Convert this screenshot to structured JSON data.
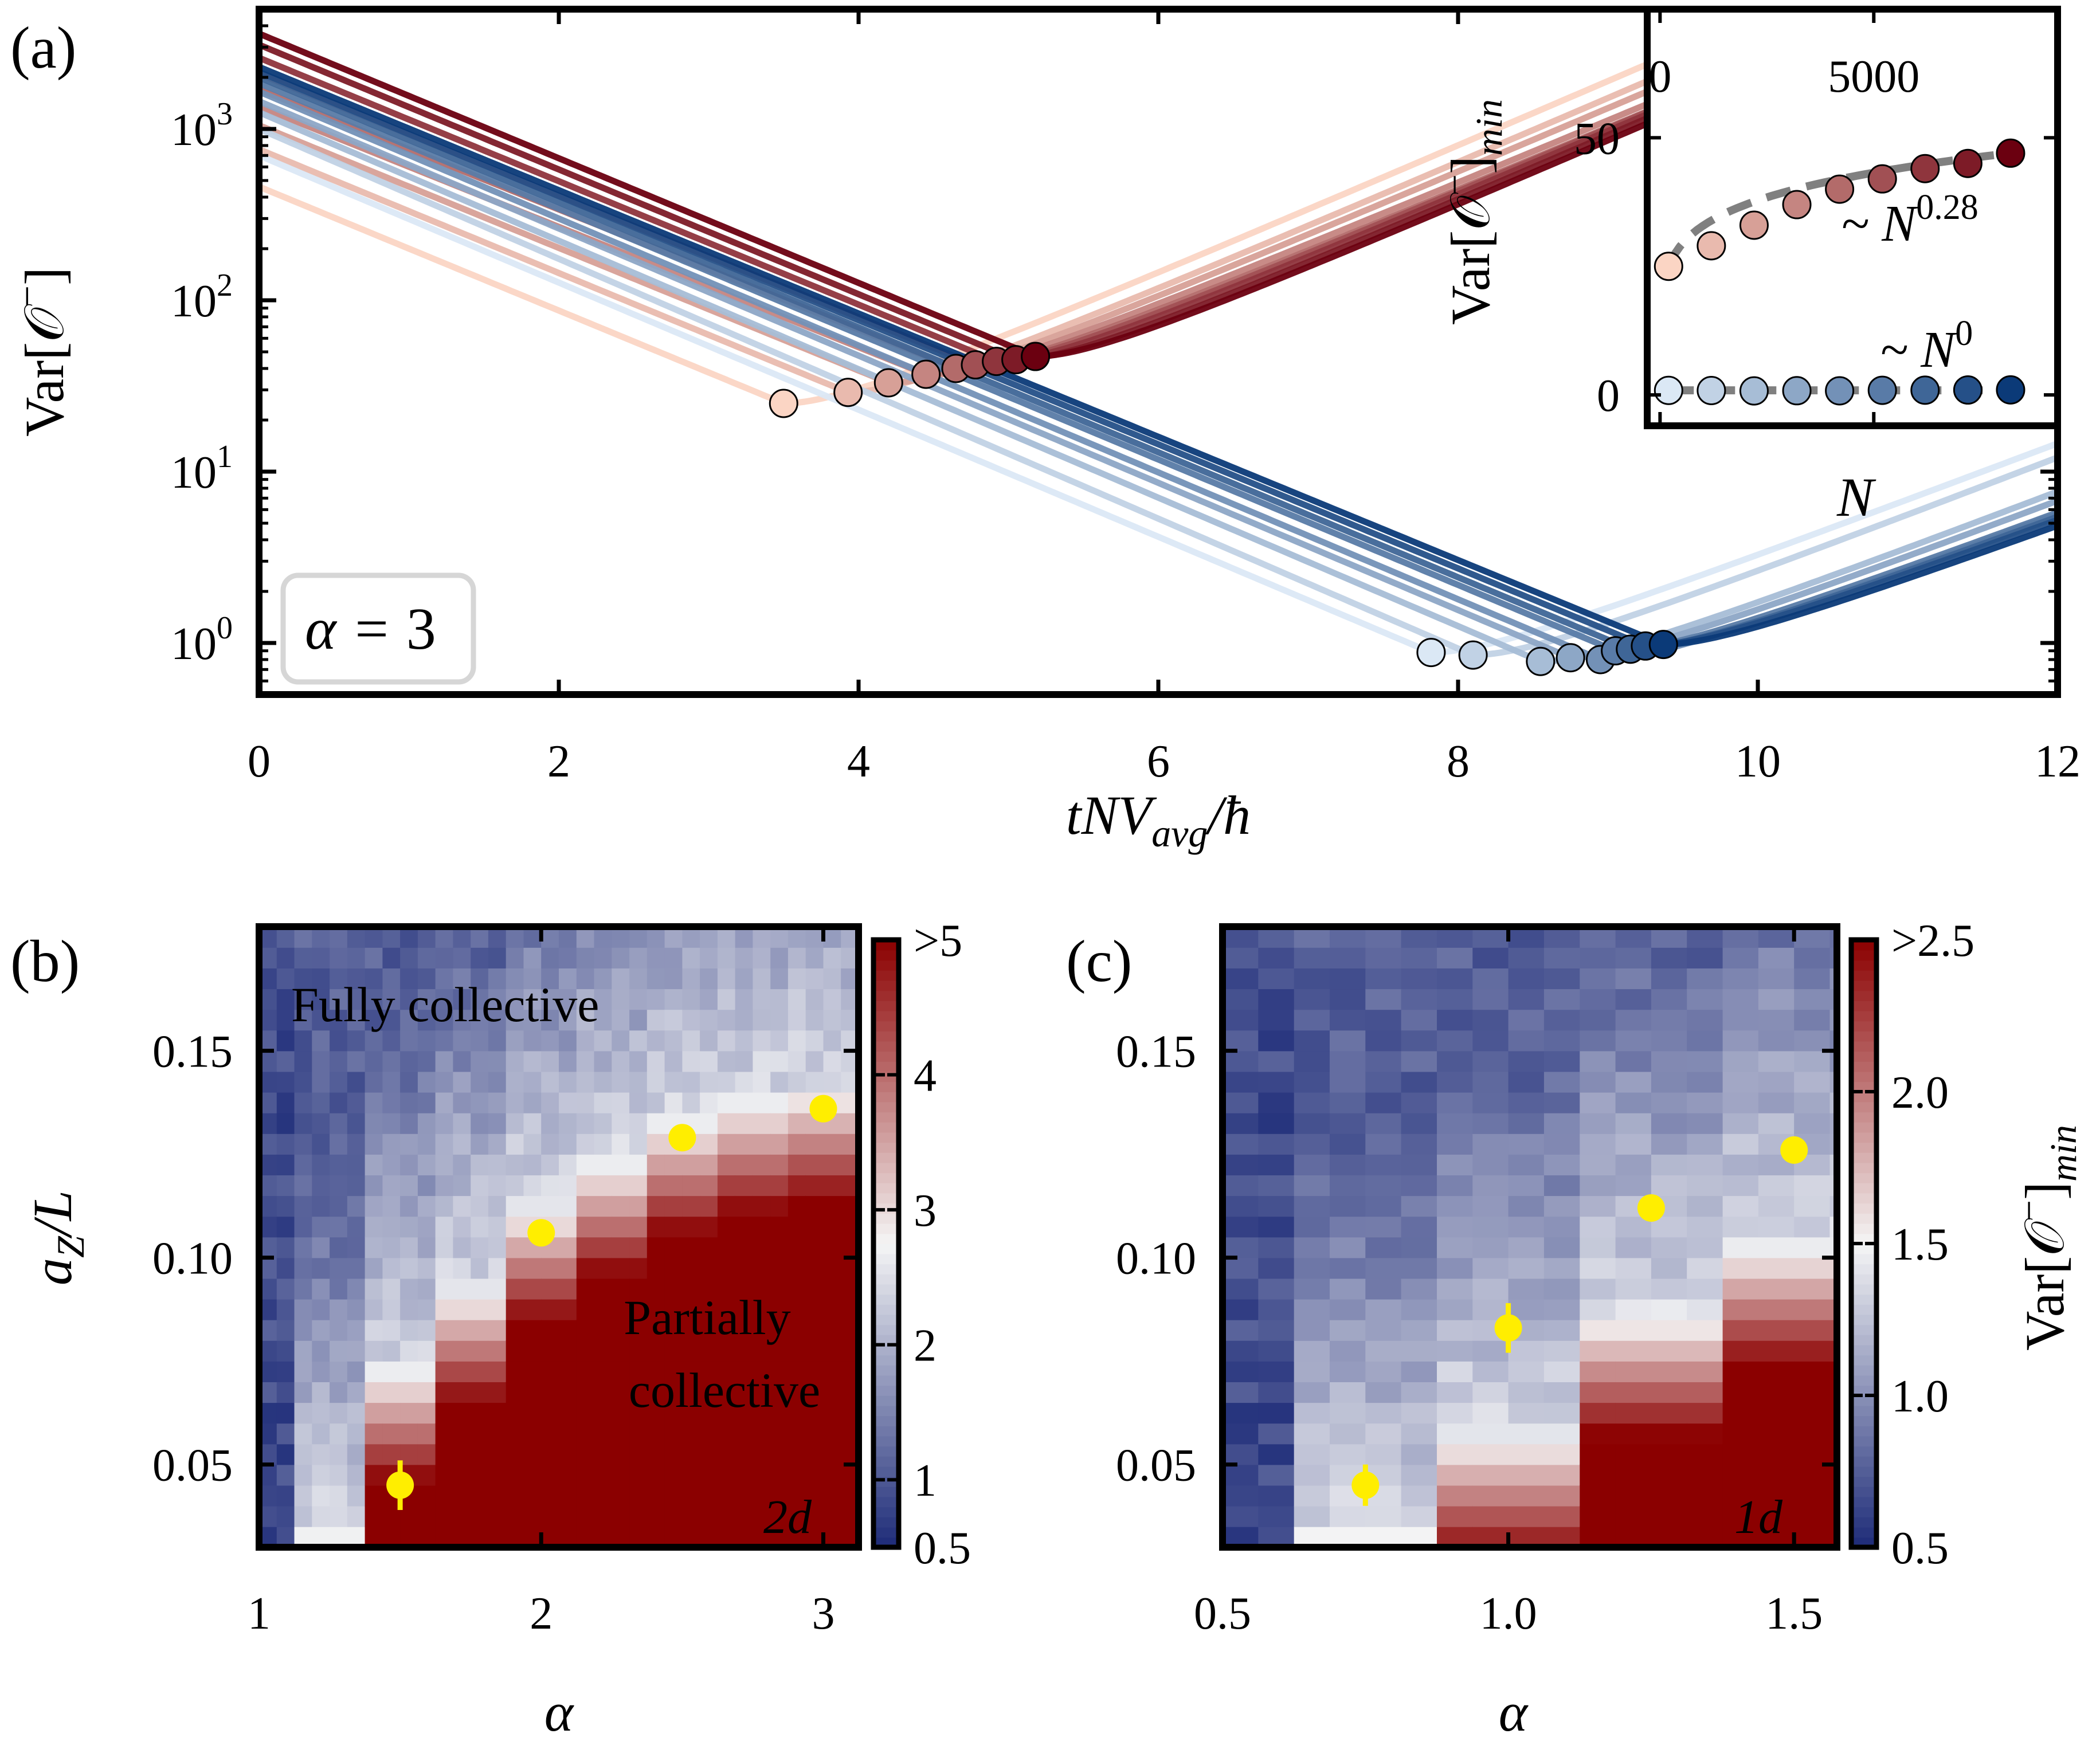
{
  "colors": {
    "red_light": "#fbd5c4",
    "red_dark": "#6b0010",
    "blue_light": "#dbe8f5",
    "blue_dark": "#0b3a78",
    "heat_low": "#1d2b78",
    "heat_mid": "#f5f5f5",
    "heat_high": "#8b0000",
    "marker_yellow": "#ffee00",
    "fit_dash": "#808080",
    "inset_red_text": "#9b0f1e",
    "inset_blue_text": "#1c2a7a"
  },
  "panel_labels": {
    "a": "(a)",
    "b": "(b)",
    "c": "(c)"
  },
  "chart_data": [
    {
      "id": "a",
      "type": "line",
      "xlabel": "tNV",
      "xlabel_sub": "avg",
      "xlabel_tail": "/ħ",
      "ylabel": "Var[𝒪",
      "ylabel_sup": "−",
      "ylabel_tail": "]",
      "xlim": [
        0,
        12
      ],
      "ylim": [
        0.5,
        5000
      ],
      "yscale": "log",
      "xticks": [
        0,
        2,
        4,
        6,
        8,
        10,
        12
      ],
      "yticks": [
        1,
        10,
        100,
        1000
      ],
      "ytick_base": "10",
      "ytick_exponents": [
        "0",
        "1",
        "2",
        "3"
      ],
      "annotation_prefix": "α = ",
      "annotation_value": "3",
      "series_groups": [
        {
          "group": "red",
          "description": "partially collective",
          "series": [
            {
              "n": 0,
              "A": 460,
              "t0": 3.5,
              "vmin": 25
            },
            {
              "n": 1,
              "A": 760,
              "t0": 3.93,
              "vmin": 29
            },
            {
              "n": 2,
              "A": 1050,
              "t0": 4.2,
              "vmin": 33
            },
            {
              "n": 3,
              "A": 1350,
              "t0": 4.45,
              "vmin": 37
            },
            {
              "n": 4,
              "A": 1700,
              "t0": 4.65,
              "vmin": 40
            },
            {
              "n": 5,
              "A": 2100,
              "t0": 4.78,
              "vmin": 42
            },
            {
              "n": 6,
              "A": 2600,
              "t0": 4.92,
              "vmin": 44
            },
            {
              "n": 7,
              "A": 3100,
              "t0": 5.05,
              "vmin": 45
            },
            {
              "n": 8,
              "A": 3600,
              "t0": 5.18,
              "vmin": 47
            }
          ]
        },
        {
          "group": "blue",
          "description": "fully collective",
          "series": [
            {
              "n": 0,
              "A": 700,
              "t0": 7.82,
              "vmin": 0.88
            },
            {
              "n": 1,
              "A": 1000,
              "t0": 8.1,
              "vmin": 0.85
            },
            {
              "n": 2,
              "A": 1250,
              "t0": 8.55,
              "vmin": 0.78
            },
            {
              "n": 3,
              "A": 1450,
              "t0": 8.75,
              "vmin": 0.82
            },
            {
              "n": 4,
              "A": 1650,
              "t0": 8.95,
              "vmin": 0.8
            },
            {
              "n": 5,
              "A": 1850,
              "t0": 9.05,
              "vmin": 0.9
            },
            {
              "n": 6,
              "A": 2000,
              "t0": 9.15,
              "vmin": 0.92
            },
            {
              "n": 7,
              "A": 2150,
              "t0": 9.25,
              "vmin": 0.96
            },
            {
              "n": 8,
              "A": 2300,
              "t0": 9.37,
              "vmin": 0.98
            }
          ]
        }
      ]
    },
    {
      "id": "a-inset",
      "type": "scatter",
      "xlabel": "N",
      "ylabel": "Var[𝒪",
      "ylabel_sup": "−",
      "ylabel_tail": "]",
      "ylabel_sub": "min",
      "xlim": [
        -300,
        9300
      ],
      "ylim": [
        -6,
        75
      ],
      "xticks": [
        0,
        5000
      ],
      "yticks": [
        0,
        50
      ],
      "red_points": {
        "x": [
          200,
          1200,
          2200,
          3200,
          4200,
          5200,
          6200,
          7200,
          8200
        ],
        "y": [
          25,
          29,
          33,
          37,
          40,
          42,
          44,
          45,
          47
        ]
      },
      "blue_points": {
        "x": [
          200,
          1200,
          2200,
          3200,
          4200,
          5200,
          6200,
          7200,
          8200
        ],
        "y": [
          0.88,
          0.85,
          0.78,
          0.82,
          0.8,
          0.9,
          0.92,
          0.96,
          0.98
        ]
      },
      "fit_red_label": "~ N",
      "fit_red_exponent": "0.28",
      "fit_blue_label": "~ N",
      "fit_blue_exponent": "0"
    },
    {
      "id": "b",
      "type": "heatmap",
      "xlabel": "α",
      "ylabel": "a",
      "ylabel_sub": "Z",
      "ylabel_tail": "/L",
      "xlim": [
        1,
        3.125
      ],
      "ylim": [
        0.03,
        0.18
      ],
      "xticks": [
        "1",
        "2",
        "3"
      ],
      "yticks": [
        "0.05",
        "0.10",
        "0.15"
      ],
      "ytick_values": [
        0.05,
        0.1,
        0.15
      ],
      "xtick_values": [
        1,
        2,
        3
      ],
      "columns": [
        1.0,
        1.25,
        1.5,
        1.75,
        2.0,
        2.25,
        2.5,
        2.75,
        3.0
      ],
      "thresholds": [
        null,
        0.0345,
        0.074,
        0.093,
        0.113,
        0.124,
        0.134,
        0.139,
        0.142
      ],
      "threshold_width": 0.028,
      "colorbar_ticks": [
        "0.5",
        "1",
        "2",
        "3",
        "4",
        ">5"
      ],
      "colorbar_values": [
        0.5,
        1,
        2,
        3,
        4,
        5
      ],
      "colorbar_min": 0.5,
      "colorbar_max": 5,
      "markers": [
        {
          "x": 1.5,
          "y": 0.045,
          "err": 0.006
        },
        {
          "x": 2.0,
          "y": 0.106,
          "err": 0.0
        },
        {
          "x": 2.5,
          "y": 0.129,
          "err": 0.0
        },
        {
          "x": 3.0,
          "y": 0.136,
          "err": 0.0
        }
      ],
      "label_top": "Fully collective",
      "label_bottom_1": "Partially",
      "label_bottom_2": "collective",
      "dim_label": "2d"
    },
    {
      "id": "c",
      "type": "heatmap",
      "xlabel": "α",
      "xlim": [
        0.5,
        1.575
      ],
      "ylim": [
        0.03,
        0.18
      ],
      "xticks": [
        "0.5",
        "1.0",
        "1.5"
      ],
      "xtick_values": [
        0.5,
        1.0,
        1.5
      ],
      "yticks": [
        "0.05",
        "0.10",
        "0.15"
      ],
      "ytick_values": [
        0.05,
        0.1,
        0.15
      ],
      "columns": [
        0.5,
        0.75,
        1.0,
        1.25,
        1.5
      ],
      "thresholds": [
        null,
        0.035,
        0.058,
        0.087,
        0.104
      ],
      "threshold_width": 0.03,
      "colorbar_label": "Var[𝒪",
      "colorbar_label_sup": "−",
      "colorbar_label_tail": "]",
      "colorbar_label_sub": "min",
      "colorbar_ticks": [
        "0.5",
        "1.0",
        "1.5",
        "2.0",
        ">2.5"
      ],
      "colorbar_values": [
        0.5,
        1.0,
        1.5,
        2.0,
        2.5
      ],
      "colorbar_min": 0.5,
      "colorbar_max": 2.5,
      "markers": [
        {
          "x": 0.75,
          "y": 0.045,
          "err": 0.005
        },
        {
          "x": 1.0,
          "y": 0.083,
          "err": 0.006
        },
        {
          "x": 1.25,
          "y": 0.112,
          "err": 0.0
        },
        {
          "x": 1.5,
          "y": 0.126,
          "err": 0.0
        }
      ],
      "dim_label": "1d"
    }
  ]
}
